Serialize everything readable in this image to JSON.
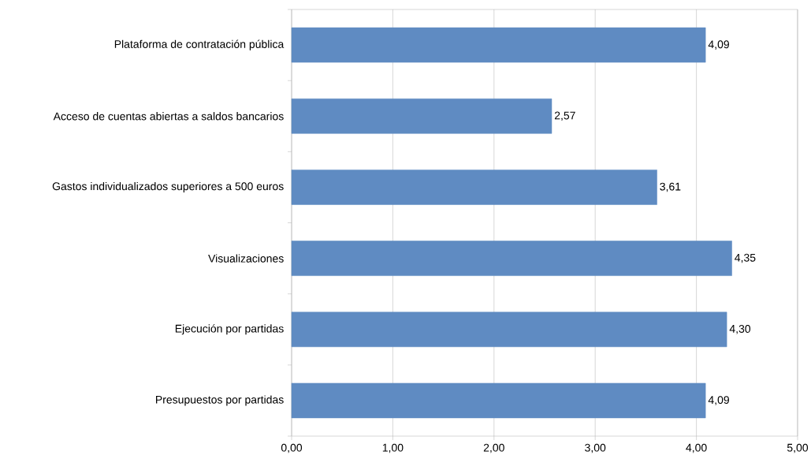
{
  "chart_data": {
    "type": "bar",
    "orientation": "horizontal",
    "categories": [
      "Plataforma de contratación pública",
      "Acceso de cuentas abiertas a saldos bancarios",
      "Gastos individualizados superiores a 500 euros",
      "Visualizaciones",
      "Ejecución por partidas",
      "Presupuestos por partidas"
    ],
    "values": [
      4.09,
      2.57,
      3.61,
      4.35,
      4.3,
      4.09
    ],
    "value_labels": [
      "4,09",
      "2,57",
      "3,61",
      "4,35",
      "4,30",
      "4,09"
    ],
    "color": "#5f8bc2",
    "xlim": [
      0,
      5
    ],
    "xticks": [
      {
        "value": 0,
        "label": "0,00"
      },
      {
        "value": 1,
        "label": "1,00"
      },
      {
        "value": 2,
        "label": "2,00"
      },
      {
        "value": 3,
        "label": "3,00"
      },
      {
        "value": 4,
        "label": "4,00"
      },
      {
        "value": 5,
        "label": "5,00"
      }
    ],
    "grid": "x"
  }
}
